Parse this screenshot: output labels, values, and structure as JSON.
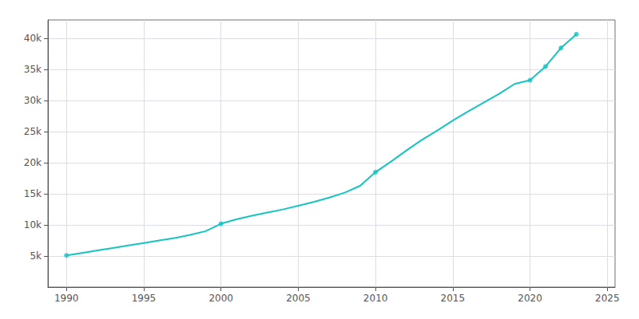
{
  "chart_data": {
    "type": "line",
    "series": [
      {
        "type": "line",
        "color": "#17c3c3",
        "x": [
          1990,
          1991,
          1992,
          1993,
          1994,
          1995,
          1996,
          1997,
          1998,
          1999,
          2000,
          2001,
          2002,
          2003,
          2004,
          2005,
          2006,
          2007,
          2008,
          2009,
          2010,
          2011,
          2012,
          2013,
          2014,
          2015,
          2016,
          2017,
          2018,
          2019,
          2020,
          2021,
          2022,
          2023
        ],
        "values": [
          5100,
          5500,
          5900,
          6300,
          6700,
          7100,
          7500,
          7900,
          8400,
          9000,
          10200,
          10900,
          11500,
          12000,
          12500,
          13100,
          13700,
          14400,
          15200,
          16300,
          18500,
          20200,
          22000,
          23700,
          25200,
          26800,
          28300,
          29700,
          31100,
          32700,
          33300,
          35500,
          38500,
          40700
        ]
      },
      {
        "type": "scatter",
        "color": "#17c3c3",
        "x": [
          1990,
          2000,
          2010,
          2020,
          2021,
          2022,
          2023
        ],
        "values": [
          5100,
          10200,
          18500,
          33300,
          35500,
          38500,
          40700
        ]
      }
    ],
    "xlim": [
      1988.8,
      2025.5
    ],
    "ylim": [
      0,
      43000
    ],
    "xticks": [
      1990,
      1995,
      2000,
      2005,
      2010,
      2015,
      2020,
      2025
    ],
    "yticks": [
      {
        "value": 5000,
        "label": "5k"
      },
      {
        "value": 10000,
        "label": "10k"
      },
      {
        "value": 15000,
        "label": "15k"
      },
      {
        "value": 20000,
        "label": "20k"
      },
      {
        "value": 25000,
        "label": "25k"
      },
      {
        "value": 30000,
        "label": "30k"
      },
      {
        "value": 35000,
        "label": "35k"
      },
      {
        "value": 40000,
        "label": "40k"
      }
    ],
    "grid": true
  }
}
